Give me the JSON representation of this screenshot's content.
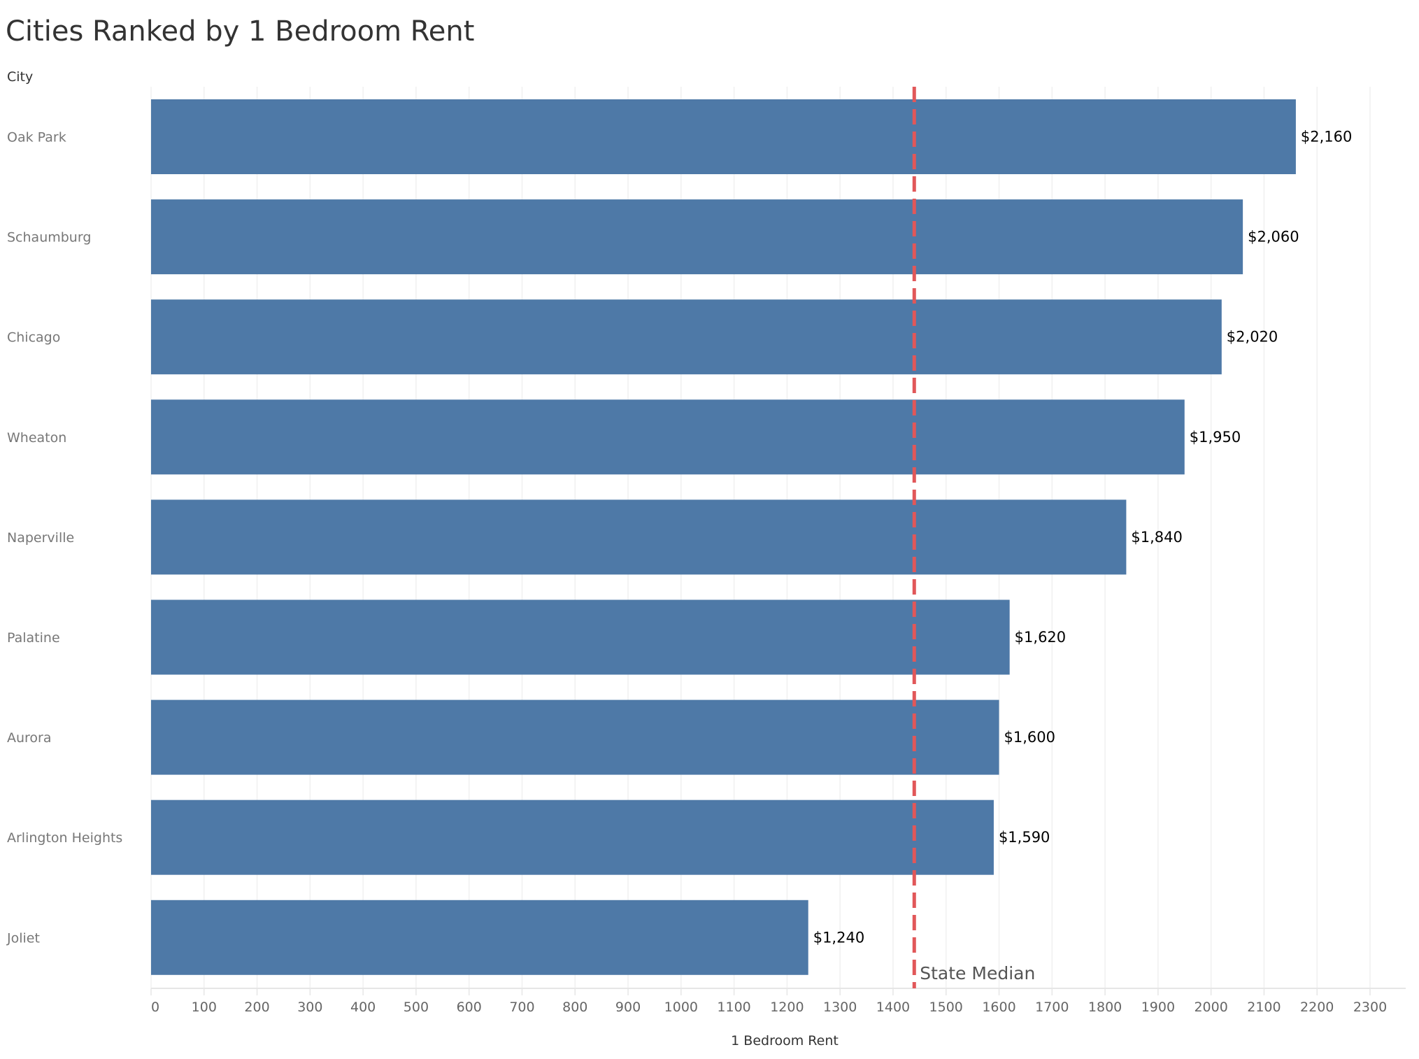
{
  "chart_data": {
    "type": "bar",
    "orientation": "horizontal",
    "title": "Cities Ranked by 1 Bedroom Rent",
    "row_header": "City",
    "xlabel": "1 Bedroom Rent",
    "categories": [
      "Oak Park",
      "Schaumburg",
      "Chicago",
      "Wheaton",
      "Naperville",
      "Palatine",
      "Aurora",
      "Arlington Heights",
      "Joliet"
    ],
    "values": [
      2160,
      2060,
      2020,
      1950,
      1840,
      1620,
      1600,
      1590,
      1240
    ],
    "data_labels": [
      "$2,160",
      "$2,060",
      "$2,020",
      "$1,950",
      "$1,840",
      "$1,620",
      "$1,600",
      "$1,590",
      "$1,240"
    ],
    "xlim": [
      0,
      2300
    ],
    "xticks": [
      0,
      100,
      200,
      300,
      400,
      500,
      600,
      700,
      800,
      900,
      1000,
      1100,
      1200,
      1300,
      1400,
      1500,
      1600,
      1700,
      1800,
      1900,
      2000,
      2100,
      2200,
      2300
    ],
    "grid": true,
    "reference_line": {
      "value": 1440,
      "label": "State Median",
      "style": "dashed",
      "color": "#e15759"
    },
    "bar_color": "#4e79a7"
  }
}
